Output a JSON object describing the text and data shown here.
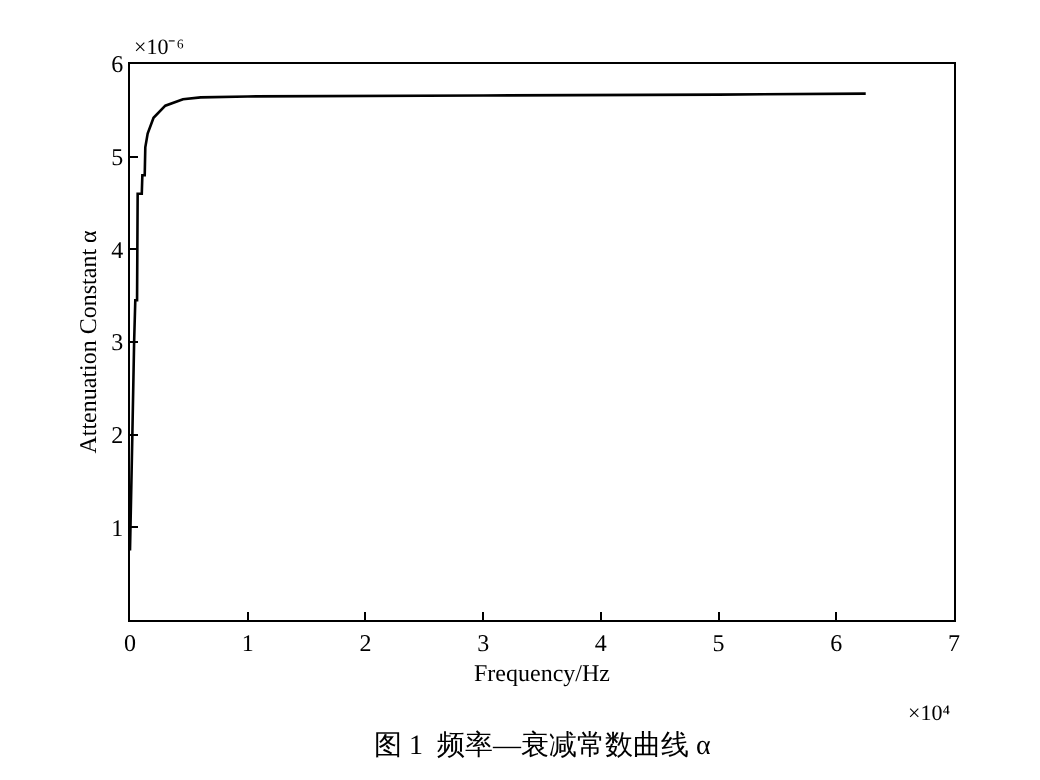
{
  "chart_data": {
    "type": "line",
    "title": "图 1  频率—衰减常数曲线 α",
    "xlabel": "Frequency/Hz",
    "ylabel": "Attenuation Constant α",
    "x": [
      0,
      0.02,
      0.035,
      0.045,
      0.06,
      0.065,
      0.1,
      0.105,
      0.125,
      0.13,
      0.15,
      0.2,
      0.3,
      0.45,
      0.6,
      1,
      3,
      5,
      6.25
    ],
    "series": [
      {
        "color": "#000000",
        "values": [
          0.75,
          2.0,
          3.0,
          3.45,
          3.45,
          4.6,
          4.6,
          4.8,
          4.8,
          5.1,
          5.25,
          5.42,
          5.55,
          5.62,
          5.64,
          5.65,
          5.66,
          5.67,
          5.68
        ]
      }
    ],
    "xlim": [
      0,
      7
    ],
    "xticks": [
      0,
      1,
      2,
      3,
      4,
      5,
      6,
      7
    ],
    "ylim": [
      0,
      6
    ],
    "yticks": [
      {
        "value": 0,
        "label": null
      },
      1,
      2,
      3,
      4,
      5,
      6
    ],
    "annotations": [
      "×10⁴",
      "×10⁻⁶"
    ],
    "line_style": "solid",
    "marker": "none"
  }
}
